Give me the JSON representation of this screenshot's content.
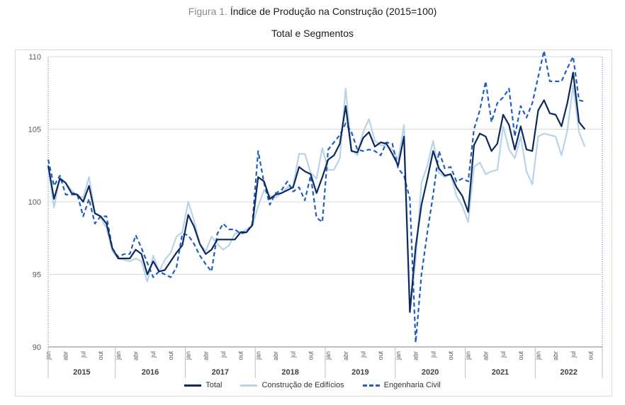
{
  "header": {
    "figure_prefix": "Figura 1.",
    "title": "Índice de Produção na Construção (2015=100)",
    "subtitle": "Total e Segmentos"
  },
  "chart_data": {
    "type": "line",
    "ylim": [
      90,
      110
    ],
    "yticks": [
      90,
      95,
      100,
      105,
      110
    ],
    "month_labels": [
      "jan",
      "abr",
      "jul",
      "out"
    ],
    "years": [
      "2015",
      "2016",
      "2017",
      "2018",
      "2019",
      "2020",
      "2021",
      "2022"
    ],
    "x_start": "2015-01",
    "x_end": "2022-12",
    "grid": "horizontal",
    "legend_position": "bottom",
    "series": [
      {
        "name": "Total",
        "color": "#0d2a5c",
        "style": "solid",
        "values": [
          102.5,
          100.2,
          101.6,
          101.3,
          100.6,
          100.5,
          100.0,
          101.1,
          99.2,
          99.0,
          98.5,
          96.8,
          96.1,
          96.1,
          96.1,
          96.7,
          96.4,
          95.0,
          95.9,
          95.2,
          95.3,
          95.9,
          96.5,
          97.0,
          99.1,
          98.3,
          97.1,
          96.4,
          96.7,
          97.4,
          97.4,
          97.4,
          97.4,
          97.9,
          97.9,
          98.4,
          101.7,
          101.4,
          100.2,
          100.5,
          100.6,
          100.8,
          101.0,
          102.4,
          102.1,
          101.9,
          100.6,
          101.7,
          102.9,
          103.2,
          104.0,
          106.6,
          103.5,
          103.4,
          104.4,
          104.8,
          103.8,
          104.1,
          104.0,
          103.3,
          102.5,
          104.5,
          92.4,
          96.9,
          99.8,
          101.6,
          103.5,
          102.3,
          101.8,
          101.9,
          101.0,
          100.4,
          99.3,
          103.9,
          104.7,
          104.5,
          103.5,
          104.0,
          106.0,
          105.3,
          103.6,
          105.2,
          103.6,
          103.5,
          106.3,
          107.0,
          106.1,
          106.0,
          105.2,
          106.8,
          108.9,
          105.5,
          105.0
        ]
      },
      {
        "name": "Construção de Edifícios",
        "color": "#b9d3ea",
        "style": "solid",
        "values": [
          102.4,
          99.6,
          101.7,
          101.3,
          100.8,
          100.4,
          100.3,
          101.7,
          99.3,
          98.9,
          98.2,
          96.6,
          96.1,
          96.0,
          95.9,
          96.1,
          95.9,
          94.5,
          96.3,
          95.2,
          96.0,
          96.5,
          97.6,
          97.9,
          100.0,
          98.7,
          97.1,
          96.6,
          97.6,
          97.1,
          96.7,
          97.0,
          97.8,
          97.9,
          98.1,
          98.3,
          99.7,
          100.8,
          100.4,
          100.3,
          100.6,
          101.0,
          101.1,
          103.3,
          103.3,
          102.0,
          101.6,
          103.7,
          102.2,
          102.2,
          103.0,
          107.8,
          103.6,
          103.2,
          104.8,
          105.7,
          104.2,
          103.9,
          103.9,
          103.6,
          102.9,
          105.3,
          92.4,
          96.0,
          101.3,
          102.5,
          104.2,
          102.0,
          101.7,
          101.9,
          100.4,
          99.7,
          98.6,
          102.4,
          102.7,
          101.9,
          102.1,
          102.2,
          105.2,
          103.6,
          103.0,
          104.5,
          102.1,
          101.2,
          104.5,
          104.7,
          104.6,
          104.5,
          103.2,
          104.9,
          108.0,
          104.8,
          103.8
        ]
      },
      {
        "name": "Engenharia Civil",
        "color": "#1f5fc4",
        "style": "dashed",
        "values": [
          102.9,
          101.1,
          101.8,
          100.5,
          100.5,
          100.5,
          99.0,
          100.2,
          98.5,
          99.0,
          99.0,
          96.8,
          96.2,
          96.4,
          96.4,
          97.7,
          96.8,
          95.8,
          94.8,
          95.2,
          95.0,
          94.8,
          95.5,
          97.8,
          97.7,
          97.1,
          96.3,
          95.7,
          95.2,
          97.8,
          98.5,
          98.1,
          98.1,
          97.8,
          97.9,
          98.5,
          103.5,
          101.3,
          99.8,
          100.6,
          100.8,
          101.4,
          100.7,
          101.0,
          100.1,
          101.8,
          98.9,
          98.6,
          103.6,
          104.1,
          104.6,
          105.4,
          104.8,
          103.6,
          103.5,
          103.6,
          103.5,
          103.2,
          104.1,
          104.0,
          102.3,
          101.8,
          100.2,
          90.3,
          95.0,
          97.9,
          100.5,
          103.5,
          102.3,
          102.4,
          101.4,
          101.6,
          101.4,
          105.0,
          106.3,
          108.3,
          105.5,
          106.8,
          107.2,
          107.8,
          104.5,
          106.6,
          105.8,
          106.8,
          108.6,
          110.4,
          108.3,
          108.3,
          108.3,
          109.2,
          110.0,
          107.0,
          106.9
        ]
      }
    ]
  }
}
